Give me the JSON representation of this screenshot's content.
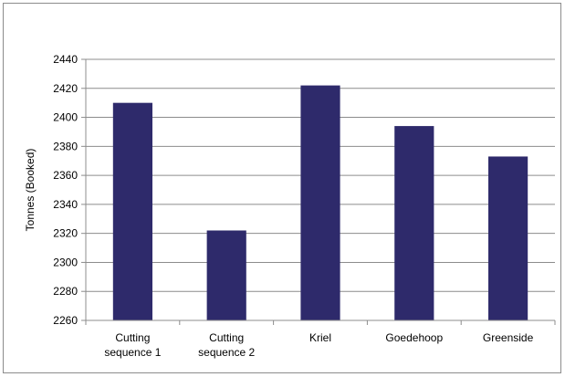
{
  "chart_data": {
    "type": "bar",
    "title": "",
    "xlabel": "",
    "ylabel": "Tonnes (Booked)",
    "categories": [
      [
        "Cutting",
        "sequence 1"
      ],
      [
        "Cutting",
        "sequence 2"
      ],
      [
        "Kriel"
      ],
      [
        "Goedehoop"
      ],
      [
        "Greenside"
      ]
    ],
    "values": [
      2410,
      2322,
      2422,
      2394,
      2373
    ],
    "ylim": [
      2260,
      2440
    ],
    "yticks": [
      2260,
      2280,
      2300,
      2320,
      2340,
      2360,
      2380,
      2400,
      2420,
      2440
    ],
    "grid": true,
    "legend": "none",
    "bar_color": "#2e2a6b",
    "grid_color": "#8c8c8c",
    "axis_color": "#8c8c8c"
  }
}
